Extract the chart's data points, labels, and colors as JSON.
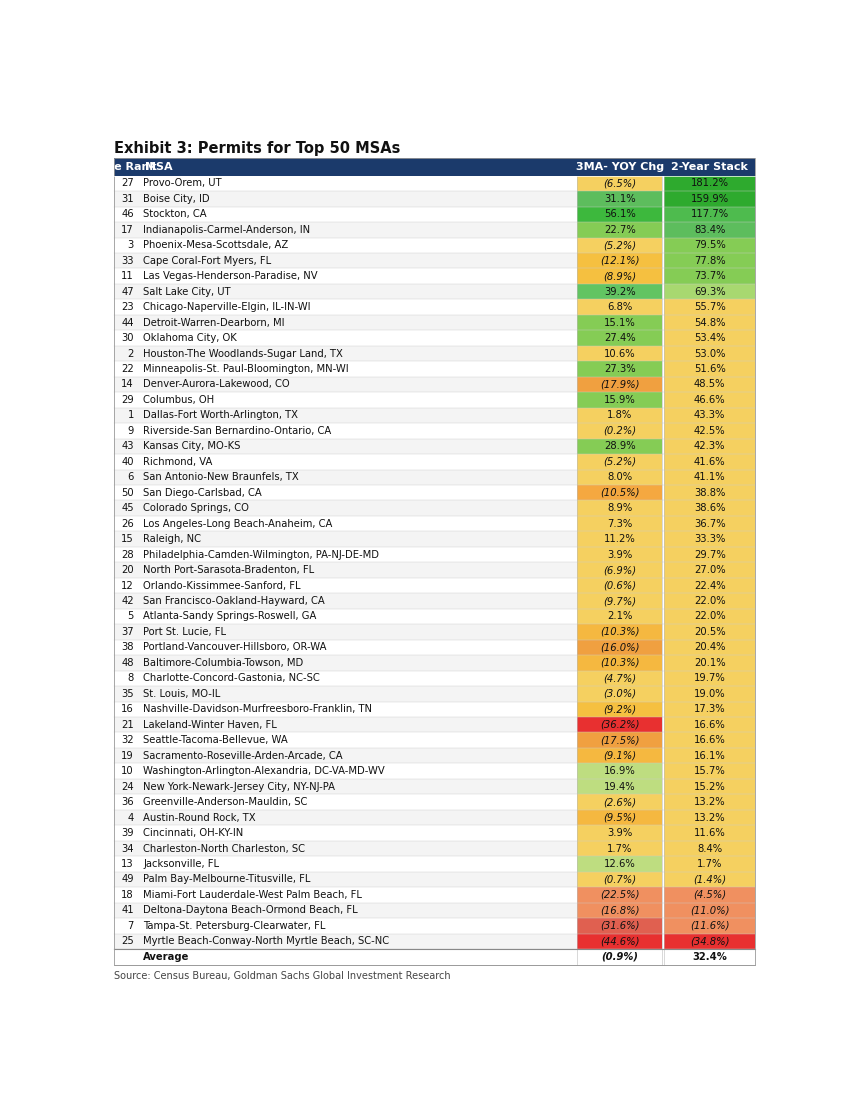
{
  "title": "Exhibit 3: Permits for Top 50 MSAs",
  "source": "Source: Census Bureau, Goldman Sachs Global Investment Research",
  "header": [
    "Size Rank",
    "MSA",
    "3MA- YOY Chg",
    "2-Year Stack"
  ],
  "rows": [
    {
      "rank": "27",
      "msa": "Provo-Orem, UT",
      "chg": "(6.5%)",
      "stack": "181.2%"
    },
    {
      "rank": "31",
      "msa": "Boise City, ID",
      "chg": "31.1%",
      "stack": "159.9%"
    },
    {
      "rank": "46",
      "msa": "Stockton, CA",
      "chg": "56.1%",
      "stack": "117.7%"
    },
    {
      "rank": "17",
      "msa": "Indianapolis-Carmel-Anderson, IN",
      "chg": "22.7%",
      "stack": "83.4%"
    },
    {
      "rank": "3",
      "msa": "Phoenix-Mesa-Scottsdale, AZ",
      "chg": "(5.2%)",
      "stack": "79.5%"
    },
    {
      "rank": "33",
      "msa": "Cape Coral-Fort Myers, FL",
      "chg": "(12.1%)",
      "stack": "77.8%"
    },
    {
      "rank": "11",
      "msa": "Las Vegas-Henderson-Paradise, NV",
      "chg": "(8.9%)",
      "stack": "73.7%"
    },
    {
      "rank": "47",
      "msa": "Salt Lake City, UT",
      "chg": "39.2%",
      "stack": "69.3%"
    },
    {
      "rank": "23",
      "msa": "Chicago-Naperville-Elgin, IL-IN-WI",
      "chg": "6.8%",
      "stack": "55.7%"
    },
    {
      "rank": "44",
      "msa": "Detroit-Warren-Dearborn, MI",
      "chg": "15.1%",
      "stack": "54.8%"
    },
    {
      "rank": "30",
      "msa": "Oklahoma City, OK",
      "chg": "27.4%",
      "stack": "53.4%"
    },
    {
      "rank": "2",
      "msa": "Houston-The Woodlands-Sugar Land, TX",
      "chg": "10.6%",
      "stack": "53.0%"
    },
    {
      "rank": "22",
      "msa": "Minneapolis-St. Paul-Bloomington, MN-WI",
      "chg": "27.3%",
      "stack": "51.6%"
    },
    {
      "rank": "14",
      "msa": "Denver-Aurora-Lakewood, CO",
      "chg": "(17.9%)",
      "stack": "48.5%"
    },
    {
      "rank": "29",
      "msa": "Columbus, OH",
      "chg": "15.9%",
      "stack": "46.6%"
    },
    {
      "rank": "1",
      "msa": "Dallas-Fort Worth-Arlington, TX",
      "chg": "1.8%",
      "stack": "43.3%"
    },
    {
      "rank": "9",
      "msa": "Riverside-San Bernardino-Ontario, CA",
      "chg": "(0.2%)",
      "stack": "42.5%"
    },
    {
      "rank": "43",
      "msa": "Kansas City, MO-KS",
      "chg": "28.9%",
      "stack": "42.3%"
    },
    {
      "rank": "40",
      "msa": "Richmond, VA",
      "chg": "(5.2%)",
      "stack": "41.6%"
    },
    {
      "rank": "6",
      "msa": "San Antonio-New Braunfels, TX",
      "chg": "8.0%",
      "stack": "41.1%"
    },
    {
      "rank": "50",
      "msa": "San Diego-Carlsbad, CA",
      "chg": "(10.5%)",
      "stack": "38.8%"
    },
    {
      "rank": "45",
      "msa": "Colorado Springs, CO",
      "chg": "8.9%",
      "stack": "38.6%"
    },
    {
      "rank": "26",
      "msa": "Los Angeles-Long Beach-Anaheim, CA",
      "chg": "7.3%",
      "stack": "36.7%"
    },
    {
      "rank": "15",
      "msa": "Raleigh, NC",
      "chg": "11.2%",
      "stack": "33.3%"
    },
    {
      "rank": "28",
      "msa": "Philadelphia-Camden-Wilmington, PA-NJ-DE-MD",
      "chg": "3.9%",
      "stack": "29.7%"
    },
    {
      "rank": "20",
      "msa": "North Port-Sarasota-Bradenton, FL",
      "chg": "(6.9%)",
      "stack": "27.0%"
    },
    {
      "rank": "12",
      "msa": "Orlando-Kissimmee-Sanford, FL",
      "chg": "(0.6%)",
      "stack": "22.4%"
    },
    {
      "rank": "42",
      "msa": "San Francisco-Oakland-Hayward, CA",
      "chg": "(9.7%)",
      "stack": "22.0%"
    },
    {
      "rank": "5",
      "msa": "Atlanta-Sandy Springs-Roswell, GA",
      "chg": "2.1%",
      "stack": "22.0%"
    },
    {
      "rank": "37",
      "msa": "Port St. Lucie, FL",
      "chg": "(10.3%)",
      "stack": "20.5%"
    },
    {
      "rank": "38",
      "msa": "Portland-Vancouver-Hillsboro, OR-WA",
      "chg": "(16.0%)",
      "stack": "20.4%"
    },
    {
      "rank": "48",
      "msa": "Baltimore-Columbia-Towson, MD",
      "chg": "(10.3%)",
      "stack": "20.1%"
    },
    {
      "rank": "8",
      "msa": "Charlotte-Concord-Gastonia, NC-SC",
      "chg": "(4.7%)",
      "stack": "19.7%"
    },
    {
      "rank": "35",
      "msa": "St. Louis, MO-IL",
      "chg": "(3.0%)",
      "stack": "19.0%"
    },
    {
      "rank": "16",
      "msa": "Nashville-Davidson-Murfreesboro-Franklin, TN",
      "chg": "(9.2%)",
      "stack": "17.3%"
    },
    {
      "rank": "21",
      "msa": "Lakeland-Winter Haven, FL",
      "chg": "(36.2%)",
      "stack": "16.6%"
    },
    {
      "rank": "32",
      "msa": "Seattle-Tacoma-Bellevue, WA",
      "chg": "(17.5%)",
      "stack": "16.6%"
    },
    {
      "rank": "19",
      "msa": "Sacramento-Roseville-Arden-Arcade, CA",
      "chg": "(9.1%)",
      "stack": "16.1%"
    },
    {
      "rank": "10",
      "msa": "Washington-Arlington-Alexandria, DC-VA-MD-WV",
      "chg": "16.9%",
      "stack": "15.7%"
    },
    {
      "rank": "24",
      "msa": "New York-Newark-Jersey City, NY-NJ-PA",
      "chg": "19.4%",
      "stack": "15.2%"
    },
    {
      "rank": "36",
      "msa": "Greenville-Anderson-Mauldin, SC",
      "chg": "(2.6%)",
      "stack": "13.2%"
    },
    {
      "rank": "4",
      "msa": "Austin-Round Rock, TX",
      "chg": "(9.5%)",
      "stack": "13.2%"
    },
    {
      "rank": "39",
      "msa": "Cincinnati, OH-KY-IN",
      "chg": "3.9%",
      "stack": "11.6%"
    },
    {
      "rank": "34",
      "msa": "Charleston-North Charleston, SC",
      "chg": "1.7%",
      "stack": "8.4%"
    },
    {
      "rank": "13",
      "msa": "Jacksonville, FL",
      "chg": "12.6%",
      "stack": "1.7%"
    },
    {
      "rank": "49",
      "msa": "Palm Bay-Melbourne-Titusville, FL",
      "chg": "(0.7%)",
      "stack": "(1.4%)"
    },
    {
      "rank": "18",
      "msa": "Miami-Fort Lauderdale-West Palm Beach, FL",
      "chg": "(22.5%)",
      "stack": "(4.5%)"
    },
    {
      "rank": "41",
      "msa": "Deltona-Daytona Beach-Ormond Beach, FL",
      "chg": "(16.8%)",
      "stack": "(11.0%)"
    },
    {
      "rank": "7",
      "msa": "Tampa-St. Petersburg-Clearwater, FL",
      "chg": "(31.6%)",
      "stack": "(11.6%)"
    },
    {
      "rank": "25",
      "msa": "Myrtle Beach-Conway-North Myrtle Beach, SC-NC",
      "chg": "(44.6%)",
      "stack": "(34.8%)"
    }
  ],
  "average": {
    "chg": "(0.9%)",
    "stack": "32.4%"
  },
  "chg_colors": [
    "#F5D060",
    "#5DBD5D",
    "#3DB83D",
    "#85CC55",
    "#F5D060",
    "#F5C040",
    "#F5C040",
    "#62C462",
    "#F5D060",
    "#85CC55",
    "#85CC55",
    "#F5D060",
    "#85CC55",
    "#F0A040",
    "#85CC55",
    "#F5D060",
    "#F5D060",
    "#85CC55",
    "#F5D060",
    "#F5D060",
    "#F5A840",
    "#F5D060",
    "#F5D060",
    "#F5D060",
    "#F5D060",
    "#F5D060",
    "#F5D060",
    "#F5D060",
    "#F5D060",
    "#F5B840",
    "#F0A040",
    "#F5B840",
    "#F5D060",
    "#F5D060",
    "#F5C040",
    "#E83030",
    "#F0A040",
    "#F5B840",
    "#BEDD80",
    "#BEDD80",
    "#F5D060",
    "#F5B840",
    "#F5D060",
    "#F5D060",
    "#BEDD80",
    "#F5D060",
    "#F09060",
    "#F09060",
    "#E06050",
    "#E83030"
  ],
  "stack_colors": [
    "#2EAA2E",
    "#2EAA2E",
    "#4EBB4E",
    "#5DBD5D",
    "#85CC55",
    "#85CC55",
    "#85CC55",
    "#A8D870",
    "#F5D060",
    "#F5D060",
    "#F5D060",
    "#F5D060",
    "#F5D060",
    "#F5D060",
    "#F5D060",
    "#F5D060",
    "#F5D060",
    "#F5D060",
    "#F5D060",
    "#F5D060",
    "#F5D060",
    "#F5D060",
    "#F5D060",
    "#F5D060",
    "#F5D060",
    "#F5D060",
    "#F5D060",
    "#F5D060",
    "#F5D060",
    "#F5D060",
    "#F5D060",
    "#F5D060",
    "#F5D060",
    "#F5D060",
    "#F5D060",
    "#F5D060",
    "#F5D060",
    "#F5D060",
    "#F5D060",
    "#F5D060",
    "#F5D060",
    "#F5D060",
    "#F5D060",
    "#F5D060",
    "#F5D060",
    "#F5D060",
    "#F09060",
    "#F09060",
    "#F09060",
    "#E83030"
  ],
  "header_bg": "#1B3A6B",
  "header_fg": "#FFFFFF"
}
